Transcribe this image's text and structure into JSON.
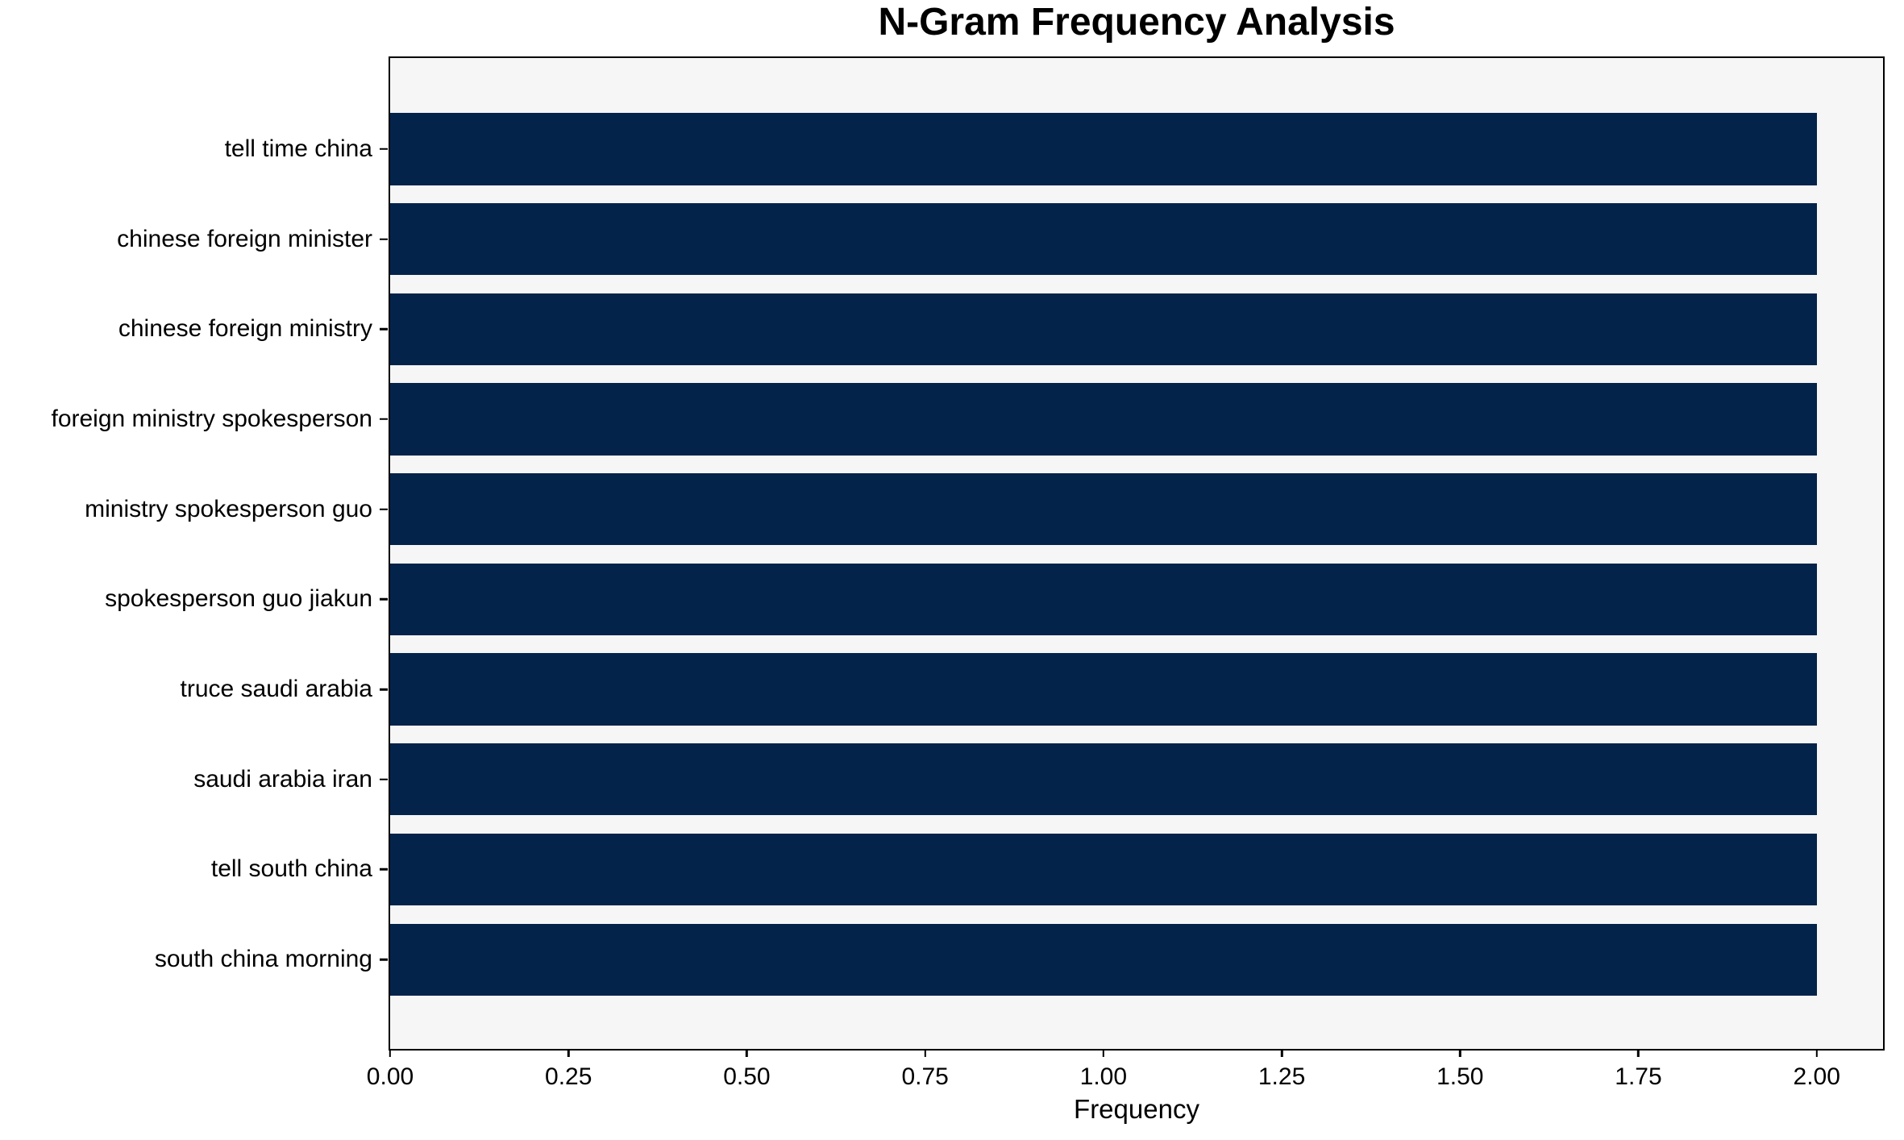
{
  "chart_data": {
    "type": "bar",
    "orientation": "horizontal",
    "title": "N-Gram Frequency Analysis",
    "xlabel": "Frequency",
    "ylabel": "",
    "categories": [
      "tell time china",
      "chinese foreign minister",
      "chinese foreign ministry",
      "foreign ministry spokesperson",
      "ministry spokesperson guo",
      "spokesperson guo jiakun",
      "truce saudi arabia",
      "saudi arabia iran",
      "tell south china",
      "south china morning"
    ],
    "values": [
      2,
      2,
      2,
      2,
      2,
      2,
      2,
      2,
      2,
      2
    ],
    "xlim": [
      0,
      2.093
    ],
    "xticks": [
      "0.00",
      "0.25",
      "0.50",
      "0.75",
      "1.00",
      "1.25",
      "1.50",
      "1.75",
      "2.00"
    ],
    "xtick_values": [
      0,
      0.25,
      0.5,
      0.75,
      1.0,
      1.25,
      1.5,
      1.75,
      2.0
    ],
    "grid": false,
    "legend": false,
    "bar_rel_height": 0.8,
    "colors": {
      "bar": "#03234a",
      "plot_background": "#f6f6f7",
      "figure_background": "#ffffff",
      "axis": "#000000",
      "text": "#000000"
    }
  }
}
